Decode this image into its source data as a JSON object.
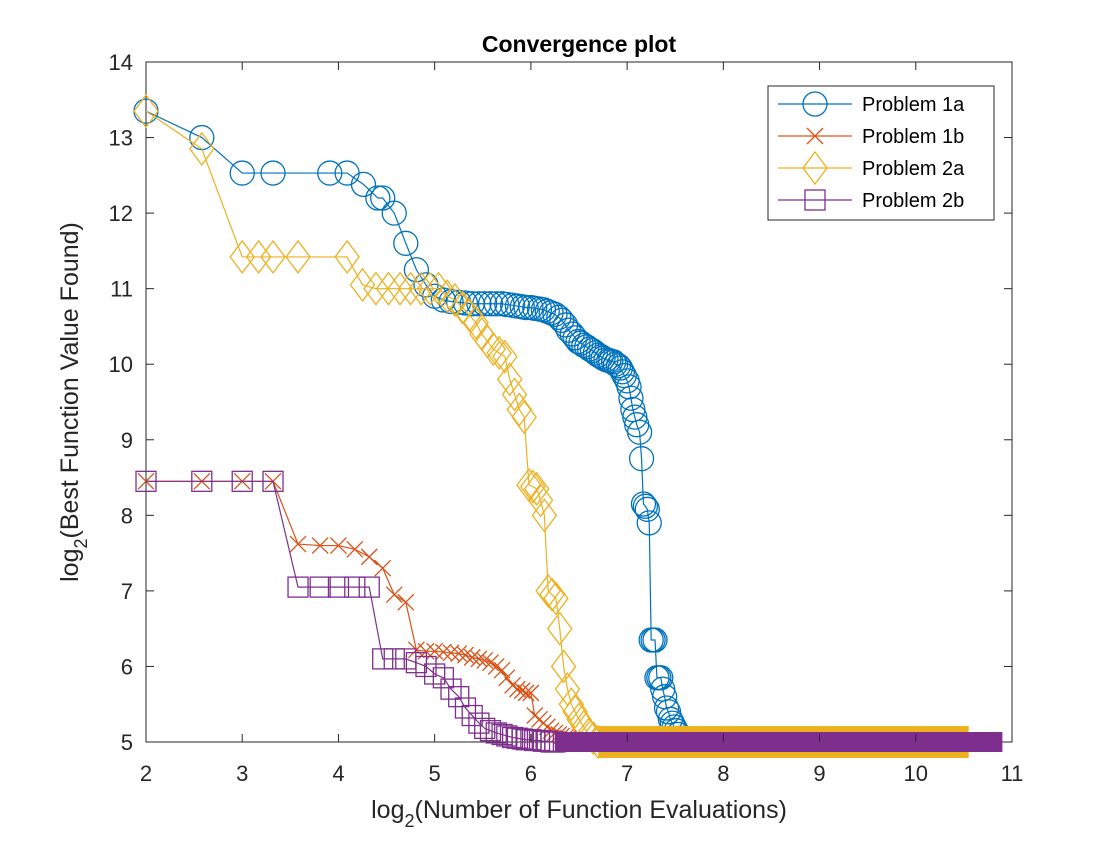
{
  "chart_data": {
    "type": "line",
    "title": "Convergence plot",
    "xlabel": {
      "prefix": "log",
      "sub": "2",
      "suffix": "(Number of Function Evaluations)"
    },
    "ylabel": {
      "prefix": "log",
      "sub": "2",
      "suffix": "(Best Function Value Found)"
    },
    "xlim": [
      2,
      11
    ],
    "ylim": [
      5,
      14
    ],
    "xticks": [
      2,
      3,
      4,
      5,
      6,
      7,
      8,
      9,
      10,
      11
    ],
    "yticks": [
      5,
      6,
      7,
      8,
      9,
      10,
      11,
      12,
      13,
      14
    ],
    "grid": false,
    "legend": {
      "location": "top-right"
    },
    "series": [
      {
        "name": "Problem 1a",
        "color": "#0072BD",
        "marker": "circle",
        "x": [
          2.0,
          2.58,
          3.0,
          3.32,
          3.91,
          4.09,
          4.26,
          4.41,
          4.46,
          4.58,
          4.7,
          4.81,
          4.91,
          5.0,
          5.09,
          5.17,
          5.25,
          5.32,
          5.39,
          5.46,
          5.52,
          5.58,
          5.64,
          5.7,
          5.75,
          5.81,
          5.86,
          5.91,
          5.95,
          6.0,
          6.04,
          6.09,
          6.13,
          6.17,
          6.21,
          6.25,
          6.29,
          6.32,
          6.36,
          6.39,
          6.43,
          6.46,
          6.49,
          6.52,
          6.55,
          6.58,
          6.61,
          6.64,
          6.67,
          6.7,
          6.73,
          6.75,
          6.78,
          6.81,
          6.83,
          6.86,
          6.88,
          6.91,
          6.93,
          6.95,
          6.97,
          7.0,
          7.02,
          7.04,
          7.06,
          7.08,
          7.1,
          7.13,
          7.15,
          7.17,
          7.19,
          7.21,
          7.23,
          7.25,
          7.27,
          7.29,
          7.31,
          7.33,
          7.35,
          7.37,
          7.39,
          7.41,
          7.43,
          7.45,
          7.47,
          7.49,
          7.51,
          7.53,
          7.55,
          7.57,
          7.59,
          7.61
        ],
        "y": [
          13.35,
          13.0,
          12.53,
          12.53,
          12.53,
          12.53,
          12.38,
          12.2,
          12.2,
          12.0,
          11.6,
          11.25,
          11.05,
          10.9,
          10.85,
          10.83,
          10.82,
          10.81,
          10.8,
          10.8,
          10.8,
          10.8,
          10.8,
          10.8,
          10.79,
          10.78,
          10.77,
          10.76,
          10.75,
          10.75,
          10.74,
          10.73,
          10.72,
          10.7,
          10.68,
          10.66,
          10.62,
          10.58,
          10.52,
          10.45,
          10.4,
          10.35,
          10.3,
          10.28,
          10.25,
          10.23,
          10.2,
          10.18,
          10.15,
          10.12,
          10.1,
          10.08,
          10.06,
          10.05,
          10.04,
          10.03,
          10.0,
          9.98,
          9.95,
          9.9,
          9.85,
          9.78,
          9.7,
          9.55,
          9.4,
          9.3,
          9.2,
          9.1,
          8.75,
          8.15,
          8.12,
          8.08,
          7.9,
          6.35,
          6.35,
          6.35,
          5.85,
          5.85,
          5.85,
          5.7,
          5.6,
          5.45,
          5.4,
          5.3,
          5.25,
          5.2,
          5.15,
          5.1,
          5.05,
          5.02,
          5.0,
          5.0
        ]
      },
      {
        "name": "Problem 1b",
        "color": "#D95319",
        "marker": "x",
        "x": [
          2.0,
          2.58,
          3.0,
          3.32,
          3.58,
          3.81,
          4.0,
          4.17,
          4.32,
          4.46,
          4.58,
          4.7,
          4.81,
          4.91,
          5.0,
          5.09,
          5.17,
          5.25,
          5.32,
          5.39,
          5.46,
          5.52,
          5.58,
          5.64,
          5.7,
          5.75,
          5.81,
          5.86,
          5.91,
          5.95,
          6.0,
          6.04,
          6.09,
          6.13,
          6.17,
          6.21,
          6.25,
          6.29,
          6.32,
          6.36,
          6.39,
          6.43,
          6.46,
          6.49,
          6.52
        ],
        "y": [
          8.45,
          8.45,
          8.45,
          8.45,
          7.62,
          7.6,
          7.6,
          7.55,
          7.45,
          7.3,
          6.95,
          6.85,
          6.22,
          6.2,
          6.2,
          6.19,
          6.18,
          6.17,
          6.15,
          6.12,
          6.1,
          6.08,
          6.05,
          6.0,
          5.95,
          5.85,
          5.75,
          5.7,
          5.68,
          5.65,
          5.65,
          5.35,
          5.3,
          5.25,
          5.2,
          5.15,
          5.12,
          5.1,
          5.08,
          5.06,
          5.05,
          5.03,
          5.02,
          5.01,
          5.0
        ]
      },
      {
        "name": "Problem 2a",
        "color": "#EDB120",
        "marker": "diamond",
        "x": [
          2.0,
          2.58,
          3.0,
          3.17,
          3.32,
          3.58,
          4.09,
          4.25,
          4.39,
          4.52,
          4.64,
          4.75,
          4.86,
          4.95,
          5.04,
          5.13,
          5.21,
          5.29,
          5.36,
          5.43,
          5.49,
          5.55,
          5.61,
          5.67,
          5.73,
          5.78,
          5.83,
          5.88,
          5.93,
          5.98,
          6.02,
          6.06,
          6.1,
          6.14,
          6.18,
          6.22,
          6.26,
          6.3,
          6.34,
          6.38,
          6.42,
          6.46,
          6.5,
          6.55,
          6.6,
          6.65,
          6.7
        ],
        "y": [
          13.35,
          12.85,
          11.42,
          11.42,
          11.42,
          11.42,
          11.42,
          11.05,
          11.0,
          11.0,
          11.0,
          11.0,
          11.0,
          11.0,
          11.0,
          10.9,
          10.85,
          10.75,
          10.65,
          10.55,
          10.4,
          10.3,
          10.2,
          10.15,
          10.1,
          9.8,
          9.6,
          9.4,
          9.3,
          8.4,
          8.38,
          8.35,
          8.2,
          8.0,
          7.0,
          6.95,
          6.9,
          6.5,
          6.0,
          5.7,
          5.5,
          5.4,
          5.3,
          5.2,
          5.1,
          5.05,
          5.0
        ]
      },
      {
        "name": "Problem 2b",
        "color": "#7E2F8E",
        "marker": "square",
        "x": [
          2.0,
          2.58,
          3.0,
          3.32,
          3.58,
          3.81,
          4.0,
          4.17,
          4.32,
          4.46,
          4.58,
          4.7,
          4.81,
          4.91,
          5.0,
          5.09,
          5.17,
          5.25,
          5.32,
          5.39,
          5.46,
          5.52,
          5.58,
          5.64,
          5.7,
          5.75,
          5.81,
          5.86,
          5.91,
          5.95,
          6.0,
          6.04,
          6.09,
          6.13,
          6.17,
          6.21,
          6.25
        ],
        "y": [
          8.45,
          8.45,
          8.45,
          8.45,
          7.05,
          7.05,
          7.05,
          7.05,
          7.05,
          6.1,
          6.1,
          6.1,
          6.05,
          6.0,
          5.9,
          5.85,
          5.7,
          5.6,
          5.45,
          5.35,
          5.25,
          5.18,
          5.15,
          5.12,
          5.1,
          5.08,
          5.06,
          5.05,
          5.04,
          5.03,
          5.03,
          5.02,
          5.02,
          5.01,
          5.01,
          5.0,
          5.0
        ]
      }
    ],
    "tail": [
      {
        "series": "Problem 2a",
        "from": 6.7,
        "to": 10.55,
        "y": 5.0
      },
      {
        "series": "Problem 2b",
        "from": 6.25,
        "to": 10.9,
        "y": 5.0
      }
    ]
  }
}
